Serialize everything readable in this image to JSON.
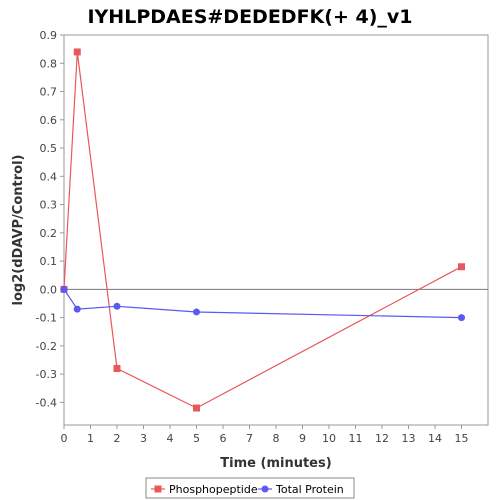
{
  "chart_data": {
    "type": "line",
    "title": "IYHLPDAES#DEDEDFK(+ 4)_v1",
    "xlabel": "Time (minutes)",
    "ylabel": "log2(dDAVP/Control)",
    "xlim": [
      0,
      16
    ],
    "ylim": [
      -0.48,
      0.9
    ],
    "xticks": [
      0,
      1,
      2,
      3,
      4,
      5,
      6,
      7,
      8,
      9,
      10,
      11,
      12,
      13,
      14,
      15
    ],
    "yticks": [
      -0.4,
      -0.3,
      -0.2,
      -0.1,
      0.0,
      0.1,
      0.2,
      0.3,
      0.4,
      0.5,
      0.6,
      0.7,
      0.8,
      0.9
    ],
    "grid": false,
    "legend_position": "bottom",
    "series": [
      {
        "name": "Phosphopeptide",
        "color": "#e8585a",
        "marker": "square",
        "x": [
          0,
          0.5,
          2,
          5,
          15
        ],
        "y": [
          0.0,
          0.84,
          -0.28,
          -0.42,
          0.08
        ]
      },
      {
        "name": "Total Protein",
        "color": "#5a5af0",
        "marker": "circle",
        "x": [
          0,
          0.5,
          2,
          5,
          15
        ],
        "y": [
          0.0,
          -0.07,
          -0.06,
          -0.08,
          -0.1
        ]
      }
    ]
  }
}
